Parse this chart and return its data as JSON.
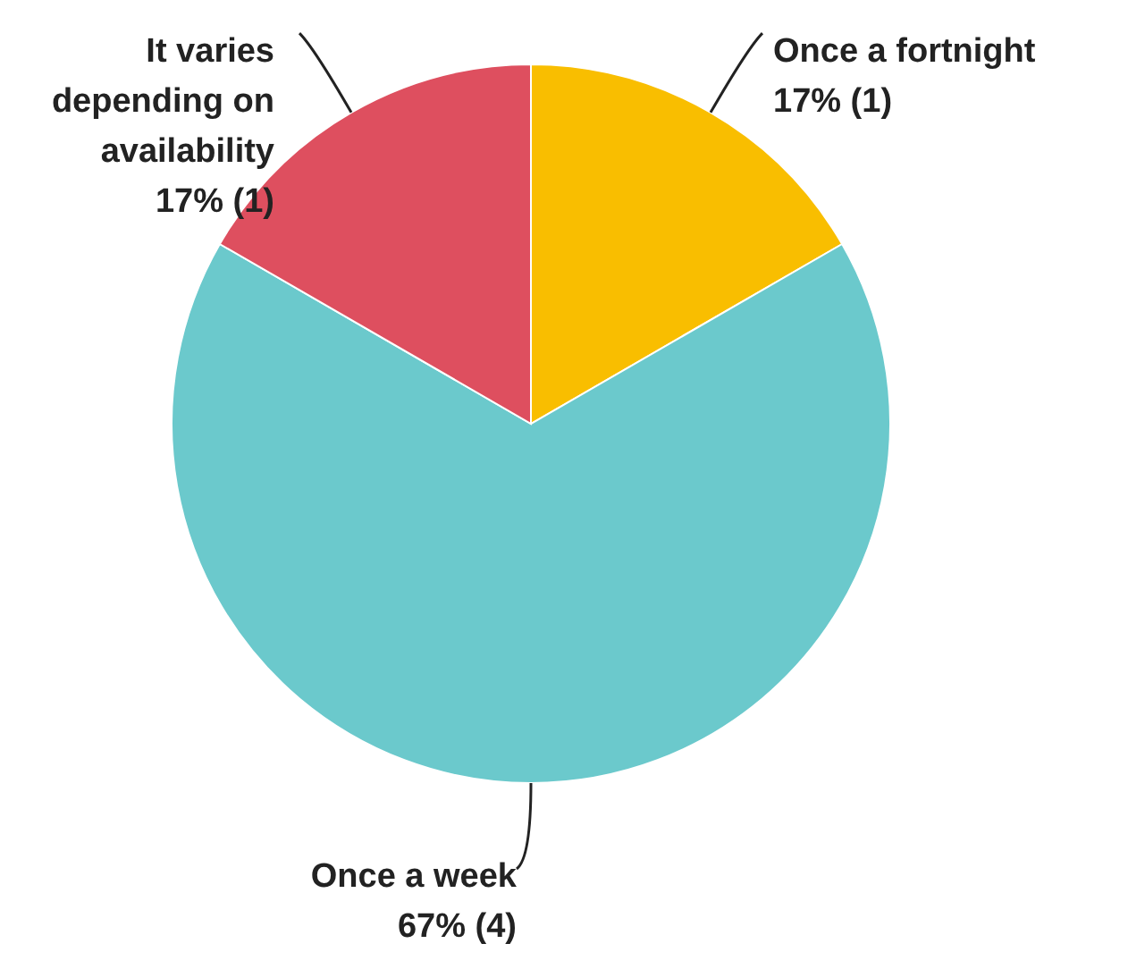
{
  "chart_data": {
    "type": "pie",
    "categories": [
      "Once a fortnight",
      "Once a week",
      "It varies depending on availability"
    ],
    "values": [
      1,
      4,
      1
    ],
    "value_labels": [
      "17% (1)",
      "67% (4)",
      "17% (1)"
    ],
    "colors": [
      "#f9be00",
      "#6bc9cc",
      "#de4f5f"
    ]
  }
}
